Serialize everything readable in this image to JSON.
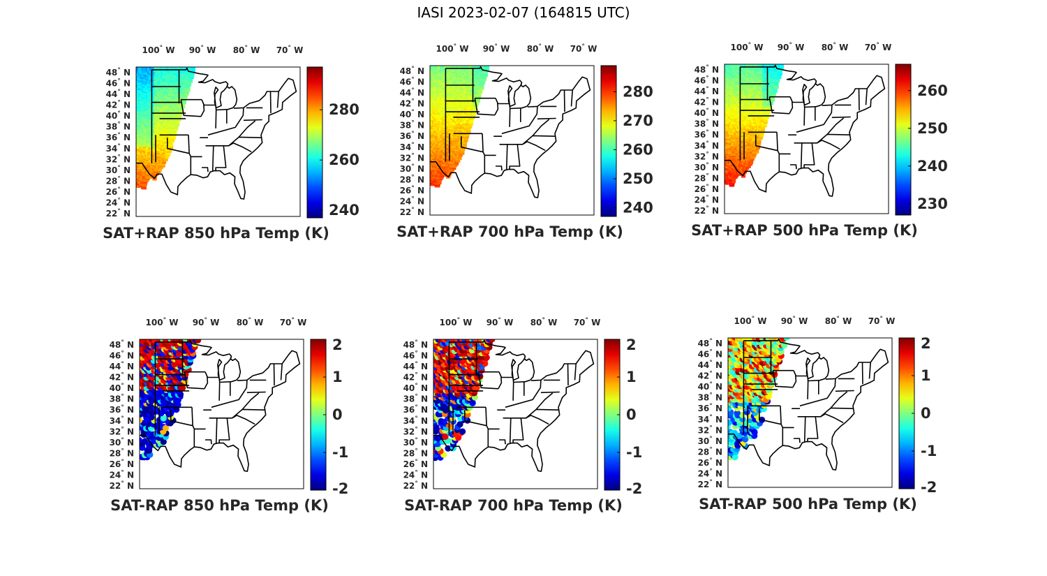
{
  "title": "IASI 2023-02-07 (164815 UTC)",
  "colors": {
    "colormap": "jet",
    "axis": "#000000",
    "text": "#262626",
    "background": "#ffffff"
  },
  "lon_ticks": [
    "100",
    "90",
    "80",
    "70"
  ],
  "lon_hemi": "W",
  "lat_ticks": [
    "48",
    "46",
    "44",
    "42",
    "40",
    "38",
    "36",
    "34",
    "32",
    "30",
    "28",
    "26",
    "24",
    "22"
  ],
  "lat_hemi": "N",
  "degree_symbol": "°",
  "panels": [
    {
      "id": "sum850",
      "title": "SAT+RAP 850 hPa Temp (K)",
      "variable": "sum",
      "level_hpa": 850,
      "cbar": {
        "min": 237,
        "max": 297,
        "ticks": [
          "280",
          "260",
          "240"
        ],
        "tick_values": [
          280,
          260,
          240
        ]
      }
    },
    {
      "id": "sum700",
      "title": "SAT+RAP 700 hPa Temp (K)",
      "variable": "sum",
      "level_hpa": 700,
      "cbar": {
        "min": 237,
        "max": 289,
        "ticks": [
          "280",
          "270",
          "260",
          "250",
          "240"
        ],
        "tick_values": [
          280,
          270,
          260,
          250,
          240
        ]
      }
    },
    {
      "id": "sum500",
      "title": "SAT+RAP 500 hPa Temp (K)",
      "variable": "sum",
      "level_hpa": 500,
      "cbar": {
        "min": 227,
        "max": 267,
        "ticks": [
          "260",
          "250",
          "240",
          "230"
        ],
        "tick_values": [
          260,
          250,
          240,
          230
        ]
      }
    },
    {
      "id": "diff850",
      "title": "SAT-RAP 850 hPa Temp (K)",
      "variable": "diff",
      "level_hpa": 850,
      "cbar": {
        "min": -2,
        "max": 2,
        "ticks": [
          "2",
          "1",
          "0",
          "-1",
          "-2"
        ],
        "tick_values": [
          2,
          1,
          0,
          -1,
          -2
        ]
      }
    },
    {
      "id": "diff700",
      "title": "SAT-RAP 700 hPa Temp (K)",
      "variable": "diff",
      "level_hpa": 700,
      "cbar": {
        "min": -2,
        "max": 2,
        "ticks": [
          "2",
          "1",
          "0",
          "-1",
          "-2"
        ],
        "tick_values": [
          2,
          1,
          0,
          -1,
          -2
        ]
      }
    },
    {
      "id": "diff500",
      "title": "SAT-RAP 500 hPa Temp (K)",
      "variable": "diff",
      "level_hpa": 500,
      "cbar": {
        "min": -2,
        "max": 2,
        "ticks": [
          "2",
          "1",
          "0",
          "-1",
          "-2"
        ],
        "tick_values": [
          2,
          1,
          0,
          -1,
          -2
        ]
      }
    }
  ]
}
